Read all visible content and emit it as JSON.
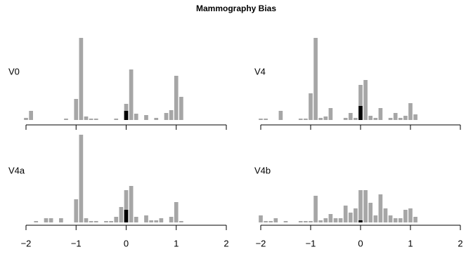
{
  "title": "Mammography Bias",
  "chart_data": [
    {
      "type": "bar",
      "label": "V0",
      "xlim": [
        -2,
        2
      ],
      "xticks": [
        -2,
        -1,
        0,
        1,
        2
      ],
      "ylim": [
        0,
        125
      ],
      "x": [
        -2.0,
        -1.9,
        -1.2,
        -1.0,
        -0.9,
        -0.8,
        -0.7,
        -0.6,
        -0.2,
        0.0,
        0.1,
        0.2,
        0.4,
        0.6,
        0.8,
        0.9,
        1.0,
        1.1
      ],
      "series": [
        {
          "color": "#a6a6a6",
          "values": [
            3,
            13,
            2,
            30,
            117,
            5,
            2,
            2,
            2,
            23,
            72,
            9,
            7,
            3,
            10,
            14,
            63,
            33
          ]
        },
        {
          "color": "#000000",
          "values": [
            null,
            null,
            null,
            null,
            null,
            null,
            null,
            null,
            null,
            13,
            null,
            null,
            null,
            null,
            null,
            null,
            null,
            null
          ]
        }
      ]
    },
    {
      "type": "bar",
      "label": "V4",
      "xlim": [
        -2,
        2
      ],
      "xticks": [
        -2,
        -1,
        0,
        1,
        2
      ],
      "ylim": [
        0,
        125
      ],
      "x": [
        -2.0,
        -1.9,
        -1.6,
        -1.2,
        -1.1,
        -1.0,
        -0.9,
        -0.8,
        -0.7,
        -0.6,
        -0.3,
        -0.2,
        -0.1,
        0.0,
        0.1,
        0.2,
        0.3,
        0.4,
        0.6,
        0.7,
        0.8,
        0.9,
        1.0,
        1.1
      ],
      "series": [
        {
          "color": "#a6a6a6",
          "values": [
            2,
            2,
            13,
            2,
            2,
            38,
            117,
            3,
            5,
            17,
            3,
            10,
            3,
            50,
            57,
            6,
            3,
            17,
            3,
            10,
            3,
            6,
            24,
            8
          ]
        },
        {
          "color": "#000000",
          "values": [
            null,
            null,
            null,
            null,
            null,
            null,
            null,
            null,
            null,
            null,
            null,
            null,
            null,
            20,
            null,
            null,
            null,
            null,
            null,
            null,
            null,
            null,
            null,
            null
          ]
        }
      ]
    },
    {
      "type": "bar",
      "label": "V4a",
      "xlim": [
        -2,
        2
      ],
      "xticks": [
        {
          "value": -2,
          "label": "−2"
        },
        {
          "value": -1,
          "label": "−1"
        },
        0,
        1,
        2
      ],
      "ylim": [
        0,
        125
      ],
      "x": [
        -1.8,
        -1.6,
        -1.5,
        -1.3,
        -1.0,
        -0.9,
        -0.8,
        -0.7,
        -0.6,
        -0.4,
        -0.3,
        -0.2,
        -0.1,
        0.0,
        0.1,
        0.2,
        0.4,
        0.5,
        0.6,
        0.7,
        0.9,
        1.0,
        1.1
      ],
      "series": [
        {
          "color": "#a6a6a6",
          "values": [
            2,
            6,
            6,
            6,
            33,
            125,
            6,
            2,
            2,
            2,
            2,
            8,
            22,
            46,
            52,
            8,
            10,
            3,
            3,
            6,
            8,
            29,
            2
          ]
        },
        {
          "color": "#000000",
          "values": [
            null,
            null,
            null,
            null,
            null,
            null,
            null,
            null,
            null,
            null,
            null,
            null,
            null,
            18,
            null,
            null,
            null,
            null,
            null,
            null,
            null,
            null,
            null
          ]
        }
      ]
    },
    {
      "type": "bar",
      "label": "V4b",
      "xlim": [
        -2,
        2
      ],
      "xticks": [
        {
          "value": -2,
          "label": "−2"
        },
        {
          "value": -1,
          "label": "−1"
        },
        0,
        1,
        2
      ],
      "ylim": [
        0,
        125
      ],
      "x": [
        -2.0,
        -1.9,
        -1.8,
        -1.7,
        -1.5,
        -1.2,
        -1.1,
        -1.0,
        -0.9,
        -0.8,
        -0.7,
        -0.6,
        -0.5,
        -0.4,
        -0.3,
        -0.2,
        -0.1,
        0.0,
        0.1,
        0.2,
        0.3,
        0.4,
        0.5,
        0.6,
        0.7,
        0.8,
        0.9,
        1.0,
        1.1
      ],
      "series": [
        {
          "color": "#a6a6a6",
          "values": [
            10,
            2,
            2,
            6,
            2,
            2,
            2,
            2,
            38,
            3,
            6,
            12,
            6,
            6,
            24,
            14,
            20,
            46,
            46,
            28,
            10,
            40,
            20,
            10,
            6,
            6,
            18,
            20,
            8
          ]
        },
        {
          "color": "#000000",
          "values": [
            null,
            null,
            null,
            null,
            null,
            null,
            null,
            null,
            null,
            null,
            null,
            null,
            null,
            null,
            null,
            null,
            null,
            3,
            null,
            null,
            null,
            null,
            null,
            null,
            null,
            null,
            null,
            null,
            null
          ]
        }
      ]
    }
  ]
}
